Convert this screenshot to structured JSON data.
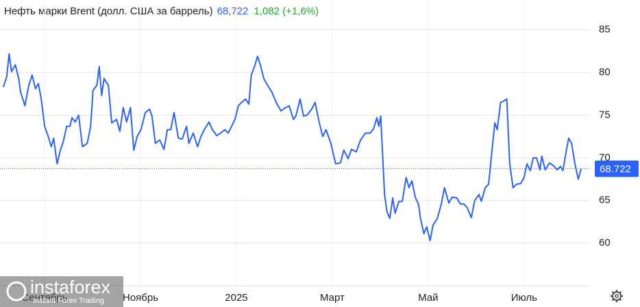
{
  "chart_data": {
    "type": "line",
    "title": "Нефть марки Brent (долл. США за баррель)",
    "price_label": "68,722",
    "change_label": "1,082 (+1,6%)",
    "last_value": 68.722,
    "watermark": {
      "brand": "instaforex",
      "tagline": "Instant Forex Trading"
    },
    "grid": true,
    "ylim": [
      55,
      88.5
    ],
    "yticks": [
      60,
      65,
      70,
      75,
      80,
      85
    ],
    "xlim": [
      -4.93,
      7.36
    ],
    "xticks": [
      {
        "value": -4,
        "label": "Сентябрь"
      },
      {
        "value": -2,
        "label": "Ноябрь"
      },
      {
        "value": 0,
        "label": "2025"
      },
      {
        "value": 2,
        "label": "Март"
      },
      {
        "value": 4,
        "label": "Май"
      },
      {
        "value": 6,
        "label": "Июль"
      }
    ],
    "x": [
      -4.86,
      -4.79,
      -4.74,
      -4.69,
      -4.61,
      -4.54,
      -4.5,
      -4.41,
      -4.33,
      -4.26,
      -4.19,
      -4.13,
      -4.07,
      -4.0,
      -3.93,
      -3.86,
      -3.81,
      -3.74,
      -3.67,
      -3.61,
      -3.54,
      -3.47,
      -3.43,
      -3.36,
      -3.29,
      -3.21,
      -3.11,
      -3.04,
      -2.99,
      -2.91,
      -2.86,
      -2.81,
      -2.76,
      -2.67,
      -2.6,
      -2.5,
      -2.43,
      -2.36,
      -2.29,
      -2.21,
      -2.14,
      -2.07,
      -1.99,
      -1.9,
      -1.81,
      -1.76,
      -1.69,
      -1.6,
      -1.51,
      -1.44,
      -1.37,
      -1.3,
      -1.21,
      -1.13,
      -1.04,
      -0.99,
      -0.9,
      -0.81,
      -0.74,
      -0.67,
      -0.57,
      -0.5,
      -0.41,
      -0.33,
      -0.24,
      -0.17,
      -0.1,
      -0.03,
      0.04,
      0.11,
      0.19,
      0.26,
      0.31,
      0.39,
      0.44,
      0.5,
      0.57,
      0.64,
      0.74,
      0.83,
      0.93,
      1.0,
      1.1,
      1.19,
      1.24,
      1.33,
      1.4,
      1.47,
      1.57,
      1.64,
      1.73,
      1.8,
      1.87,
      1.97,
      2.07,
      2.17,
      2.24,
      2.33,
      2.4,
      2.5,
      2.59,
      2.69,
      2.79,
      2.86,
      2.93,
      2.97,
      3.01,
      3.09,
      3.14,
      3.2,
      3.26,
      3.31,
      3.39,
      3.46,
      3.54,
      3.6,
      3.66,
      3.73,
      3.8,
      3.84,
      3.91,
      3.97,
      4.04,
      4.1,
      4.19,
      4.27,
      4.34,
      4.43,
      4.5,
      4.6,
      4.67,
      4.74,
      4.81,
      4.9,
      4.97,
      5.06,
      5.11,
      5.19,
      5.26,
      5.31,
      5.39,
      5.44,
      5.51,
      5.59,
      5.64,
      5.7,
      5.77,
      5.84,
      5.93,
      6.0,
      6.06,
      6.13,
      6.19,
      6.26,
      6.33,
      6.37,
      6.44,
      6.53,
      6.61,
      6.69,
      6.76,
      6.81,
      6.87,
      6.93,
      6.99,
      7.06,
      7.13,
      7.19
    ],
    "series": [
      {
        "color": "#2962ff",
        "values": [
          78.3,
          79.5,
          82.2,
          80.1,
          80.9,
          79.3,
          77.7,
          76.1,
          78.5,
          79.7,
          78.1,
          78.7,
          76.9,
          73.7,
          72.6,
          71.3,
          72.3,
          69.3,
          70.9,
          71.9,
          73.7,
          73.7,
          74.7,
          74.2,
          75.0,
          71.3,
          71.7,
          73.7,
          77.9,
          78.5,
          80.7,
          77.3,
          79.3,
          78.5,
          74.1,
          74.5,
          73.1,
          75.9,
          74.2,
          75.9,
          70.9,
          72.5,
          73.3,
          75.3,
          75.7,
          74.9,
          71.7,
          72.1,
          71.0,
          73.3,
          73.3,
          75.3,
          72.3,
          72.2,
          73.7,
          71.7,
          72.9,
          71.3,
          72.5,
          73.3,
          74.2,
          73.3,
          72.6,
          72.9,
          73.3,
          72.9,
          73.7,
          74.5,
          76.1,
          76.5,
          76.9,
          76.3,
          79.7,
          80.9,
          81.9,
          80.9,
          79.3,
          78.6,
          77.7,
          76.5,
          75.5,
          75.8,
          76.1,
          74.5,
          74.9,
          76.9,
          74.9,
          75.0,
          75.7,
          76.5,
          74.1,
          72.5,
          73.3,
          71.7,
          69.3,
          69.4,
          70.9,
          69.9,
          71.0,
          70.7,
          72.1,
          72.9,
          72.9,
          73.4,
          74.7,
          73.7,
          74.9,
          65.7,
          63.7,
          62.9,
          65.3,
          63.5,
          64.9,
          64.9,
          67.7,
          66.5,
          67.3,
          65.4,
          64.5,
          62.9,
          61.1,
          61.9,
          60.3,
          62.1,
          62.9,
          64.5,
          66.5,
          64.7,
          65.4,
          65.3,
          64.6,
          64.6,
          64.2,
          63.0,
          65.0,
          65.7,
          64.9,
          66.5,
          66.9,
          69.7,
          74.1,
          73.3,
          76.5,
          76.7,
          76.9,
          69.3,
          66.5,
          66.9,
          67.0,
          67.7,
          69.3,
          68.5,
          70.0,
          70.0,
          68.6,
          70.2,
          68.6,
          69.4,
          69.1,
          68.6,
          69.0,
          68.5,
          70.5,
          72.3,
          71.7,
          69.3,
          67.5,
          68.7
        ]
      }
    ]
  }
}
